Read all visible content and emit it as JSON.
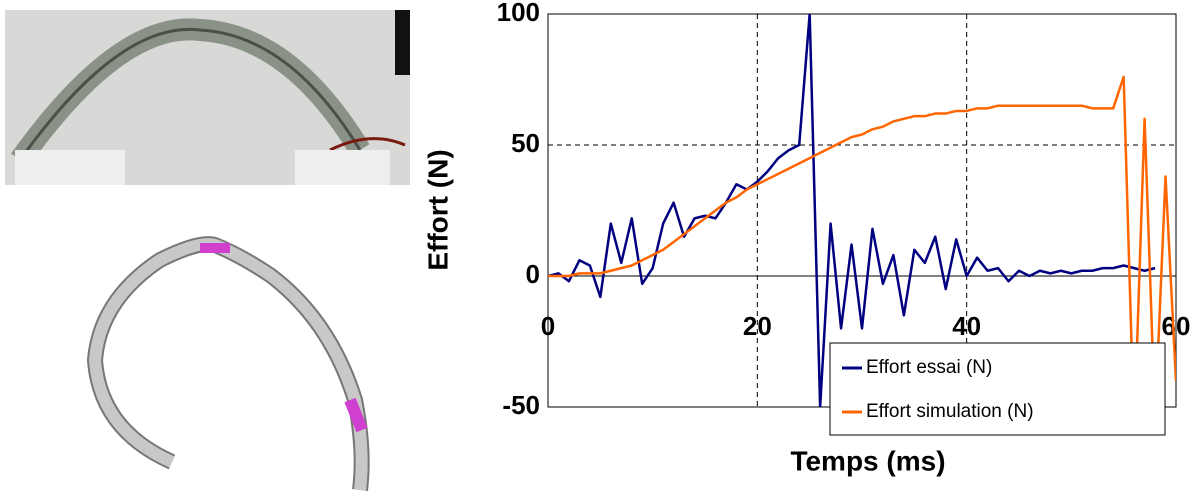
{
  "chart_data": {
    "type": "line",
    "x": [
      0,
      1,
      2,
      3,
      4,
      5,
      6,
      7,
      8,
      9,
      10,
      11,
      12,
      13,
      14,
      15,
      16,
      17,
      18,
      19,
      20,
      21,
      22,
      23,
      24,
      25,
      26,
      27,
      28,
      29,
      30,
      31,
      32,
      33,
      34,
      35,
      36,
      37,
      38,
      39,
      40,
      41,
      42,
      43,
      44,
      45,
      46,
      47,
      48,
      49,
      50,
      51,
      52,
      53,
      54,
      55,
      56,
      57,
      58,
      59,
      60
    ],
    "series": [
      {
        "name": "Effort essai (N)",
        "color": "#000080",
        "values": [
          0,
          1,
          -2,
          6,
          4,
          -8,
          20,
          5,
          22,
          -3,
          3,
          20,
          28,
          15,
          22,
          23,
          22,
          28,
          35,
          33,
          36,
          40,
          45,
          48,
          50,
          100,
          -50,
          20,
          -20,
          12,
          -20,
          18,
          -3,
          8,
          -15,
          10,
          5,
          15,
          -5,
          14,
          0,
          7,
          2,
          3,
          -2,
          2,
          0,
          2,
          1,
          2,
          1,
          2,
          2,
          3,
          3,
          4,
          3,
          2,
          3,
          null,
          null
        ]
      },
      {
        "name": "Effort simulation (N)",
        "color": "#ff6600",
        "values": [
          0,
          0,
          0,
          1,
          1,
          1,
          2,
          3,
          4,
          6,
          8,
          10,
          13,
          16,
          19,
          22,
          25,
          28,
          30,
          33,
          35,
          37,
          39,
          41,
          43,
          45,
          47,
          49,
          51,
          53,
          54,
          56,
          57,
          59,
          60,
          61,
          61,
          62,
          62,
          63,
          63,
          64,
          64,
          65,
          65,
          65,
          65,
          65,
          65,
          65,
          65,
          65,
          64,
          64,
          64,
          76,
          -60,
          60,
          -55,
          38,
          -40
        ]
      }
    ],
    "xlabel": "Temps (ms)",
    "ylabel": "Effort (N)",
    "xlim": [
      0,
      60
    ],
    "xticks": [
      0,
      20,
      40,
      60
    ],
    "ylim": [
      -50,
      100
    ],
    "yticks": [
      -50,
      0,
      50,
      100
    ],
    "grid": true,
    "legend": "lower right"
  }
}
